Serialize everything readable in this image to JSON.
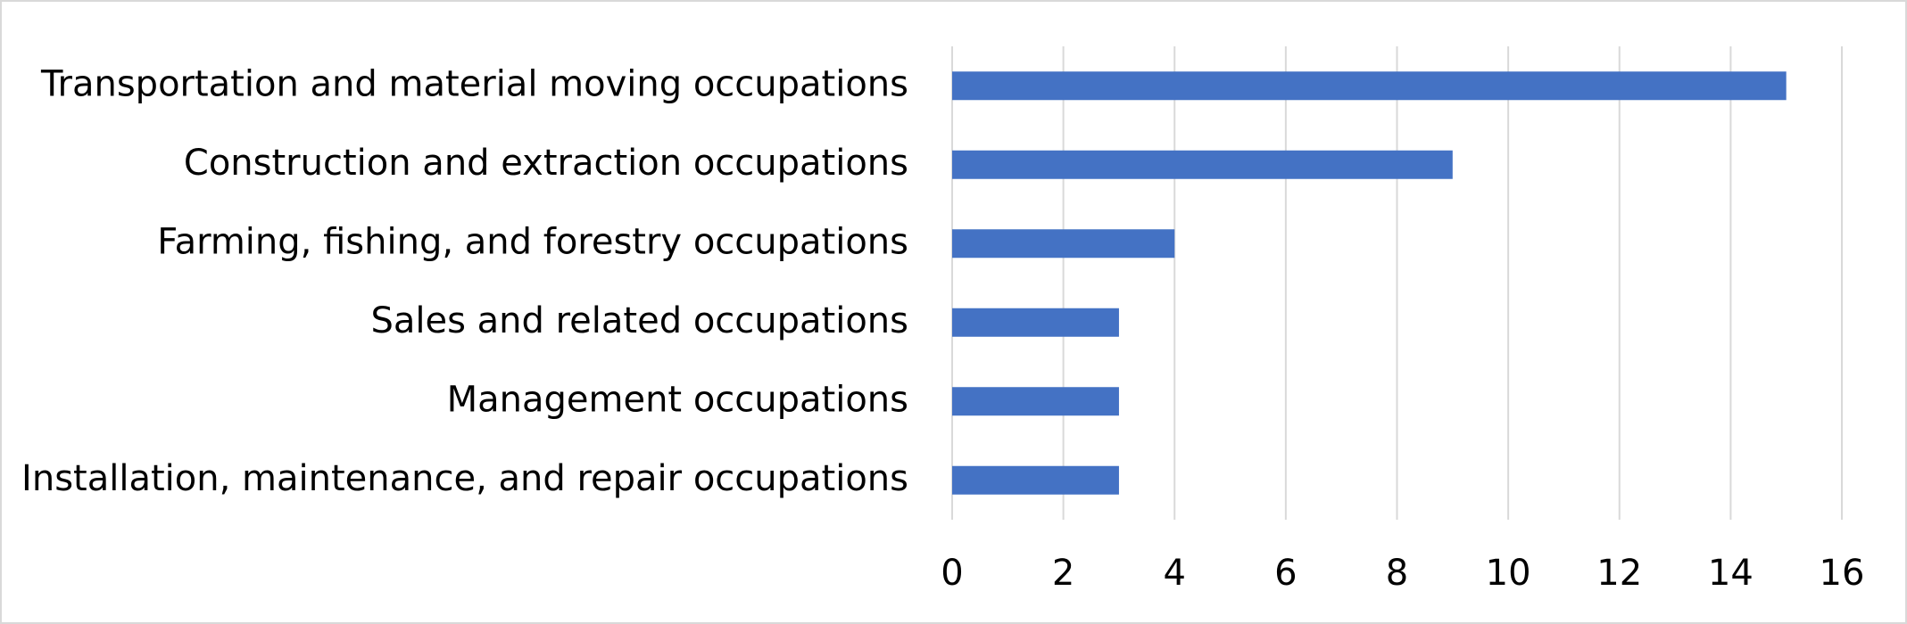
{
  "chart_data": {
    "type": "bar",
    "orientation": "horizontal",
    "categories": [
      "Transportation and material moving occupations",
      "Construction and extraction occupations",
      "Farming, fishing, and forestry occupations",
      "Sales and related occupations",
      "Management occupations",
      "Installation, maintenance, and repair occupations"
    ],
    "values": [
      15,
      9,
      4,
      3,
      3,
      3
    ],
    "color": "#4472c4",
    "xlim": [
      0,
      16
    ],
    "xticks": [
      0,
      2,
      4,
      6,
      8,
      10,
      12,
      14,
      16
    ],
    "grid": true
  }
}
